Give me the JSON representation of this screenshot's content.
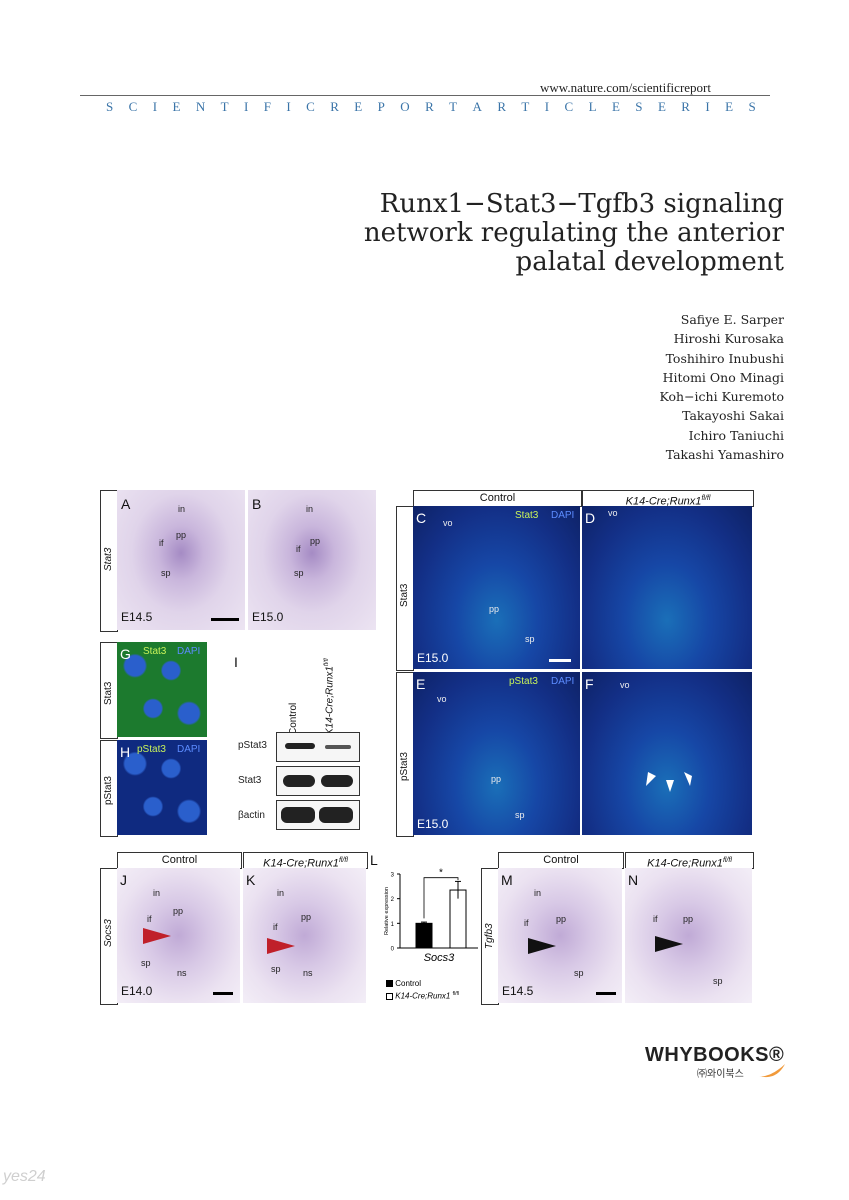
{
  "header": {
    "url": "www.nature.com/scientificreport",
    "series": "SCIENTIFICREPORTARTICLESERIES"
  },
  "title_lines": [
    "Runx1−Stat3−Tgfb3 signaling",
    "network regulating the anterior",
    "palatal development"
  ],
  "authors": [
    "Safiye E. Sarper",
    "Hiroshi Kurosaka",
    "Toshihiro Inubushi",
    "Hitomi Ono Minagi",
    "Koh−ichi Kuremoto",
    "Takayoshi Sakai",
    "Ichiro Taniuchi",
    "Takashi Yamashiro"
  ],
  "figure": {
    "labels": {
      "A": "A",
      "B": "B",
      "C": "C",
      "D": "D",
      "E": "E",
      "F": "F",
      "G": "G",
      "H": "H",
      "I": "I",
      "J": "J",
      "K": "K",
      "L": "L",
      "M": "M",
      "N": "N"
    },
    "stat3": "Stat3",
    "pstat3": "pStat3",
    "socs3": "Socs3",
    "tgfb3": "Tgfb3",
    "control": "Control",
    "mutant": "K14-Cre;Runx1",
    "mutant_sup": "fl/fl",
    "dapi": "DAPI",
    "bactin": "βactin",
    "stages": {
      "e14_5": "E14.5",
      "e15_0": "E15.0",
      "e14_0": "E14.0"
    },
    "tissue": {
      "in": "in",
      "if": "if",
      "pp": "pp",
      "sp": "sp",
      "vo": "vo",
      "ns": "ns"
    }
  },
  "chart_data": {
    "type": "bar",
    "categories": [
      "Control",
      "K14-Cre;Runx1 fl/fl"
    ],
    "values": [
      1.0,
      2.35
    ],
    "errors": [
      0.05,
      0.35
    ],
    "ylabel": "Relative expression",
    "xlabel": "Socs3",
    "ylim": [
      0,
      3
    ],
    "yticks": [
      0,
      1,
      2,
      3
    ],
    "colors": [
      "#000000",
      "#ffffff"
    ],
    "significance": "*",
    "legend": [
      "Control",
      "K14-Cre;Runx1 fl/fl"
    ]
  },
  "publisher": {
    "name": "WHYBOOKS®",
    "sub": "㈜와이북스"
  },
  "watermark": "yes24"
}
